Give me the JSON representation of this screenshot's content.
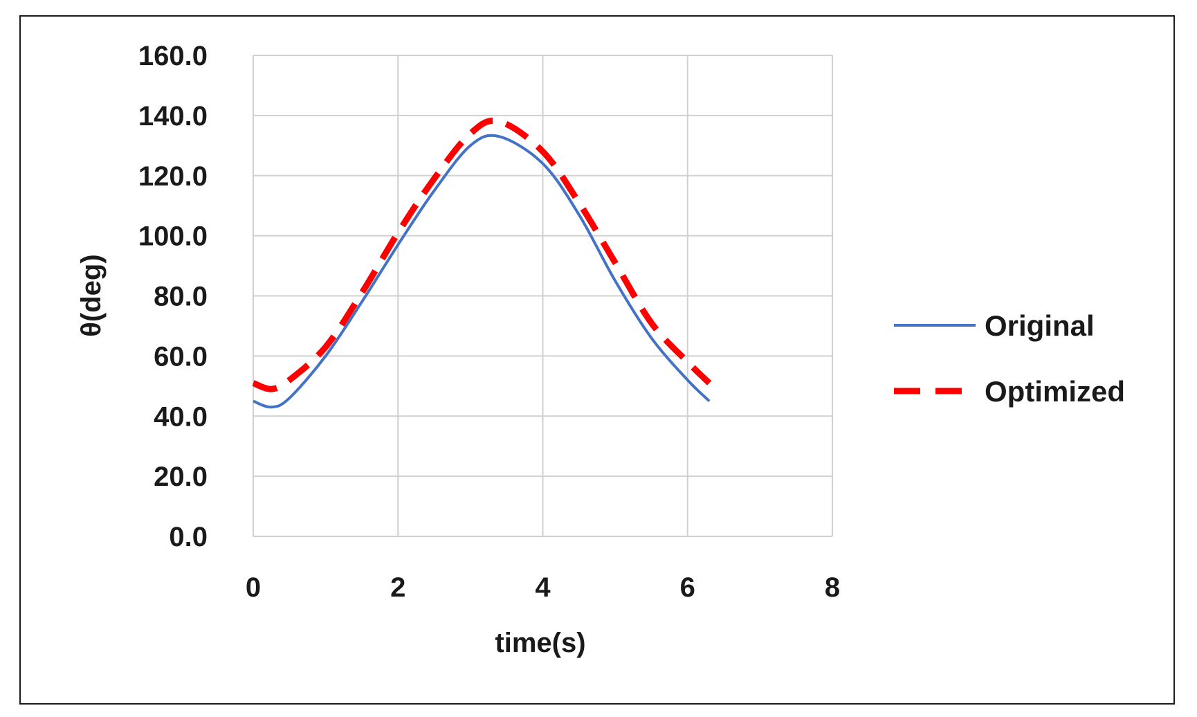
{
  "chart_data": {
    "type": "line",
    "xlabel": "time(s)",
    "ylabel": "θ(deg)",
    "xlim": [
      0,
      8
    ],
    "ylim": [
      0,
      160
    ],
    "xticks": [
      0,
      2,
      4,
      6,
      8
    ],
    "yticks": [
      0,
      20,
      40,
      60,
      80,
      100,
      120,
      140,
      160
    ],
    "ytick_labels": [
      "0.0",
      "20.0",
      "40.0",
      "60.0",
      "80.0",
      "100.0",
      "120.0",
      "140.0",
      "160.0"
    ],
    "grid": true,
    "legend_position": "right",
    "series": [
      {
        "name": "Original",
        "color": "#4472c4",
        "style": "solid",
        "x": [
          0,
          0.25,
          0.5,
          1.0,
          1.5,
          2.0,
          2.5,
          3.0,
          3.4,
          4.0,
          4.5,
          5.0,
          5.5,
          6.0,
          6.3
        ],
        "y": [
          45,
          43,
          46,
          60,
          78,
          97,
          115,
          130,
          133,
          124,
          107,
          85,
          66,
          52,
          45
        ]
      },
      {
        "name": "Optimized",
        "color": "#ff0000",
        "style": "dashed",
        "x": [
          0,
          0.25,
          0.5,
          1.0,
          1.5,
          2.0,
          2.5,
          3.0,
          3.4,
          4.0,
          4.5,
          5.0,
          5.5,
          6.0,
          6.3
        ],
        "y": [
          51,
          49,
          52,
          63,
          81,
          101,
          119,
          134,
          138,
          128,
          111,
          91,
          71,
          58,
          51
        ]
      }
    ]
  }
}
